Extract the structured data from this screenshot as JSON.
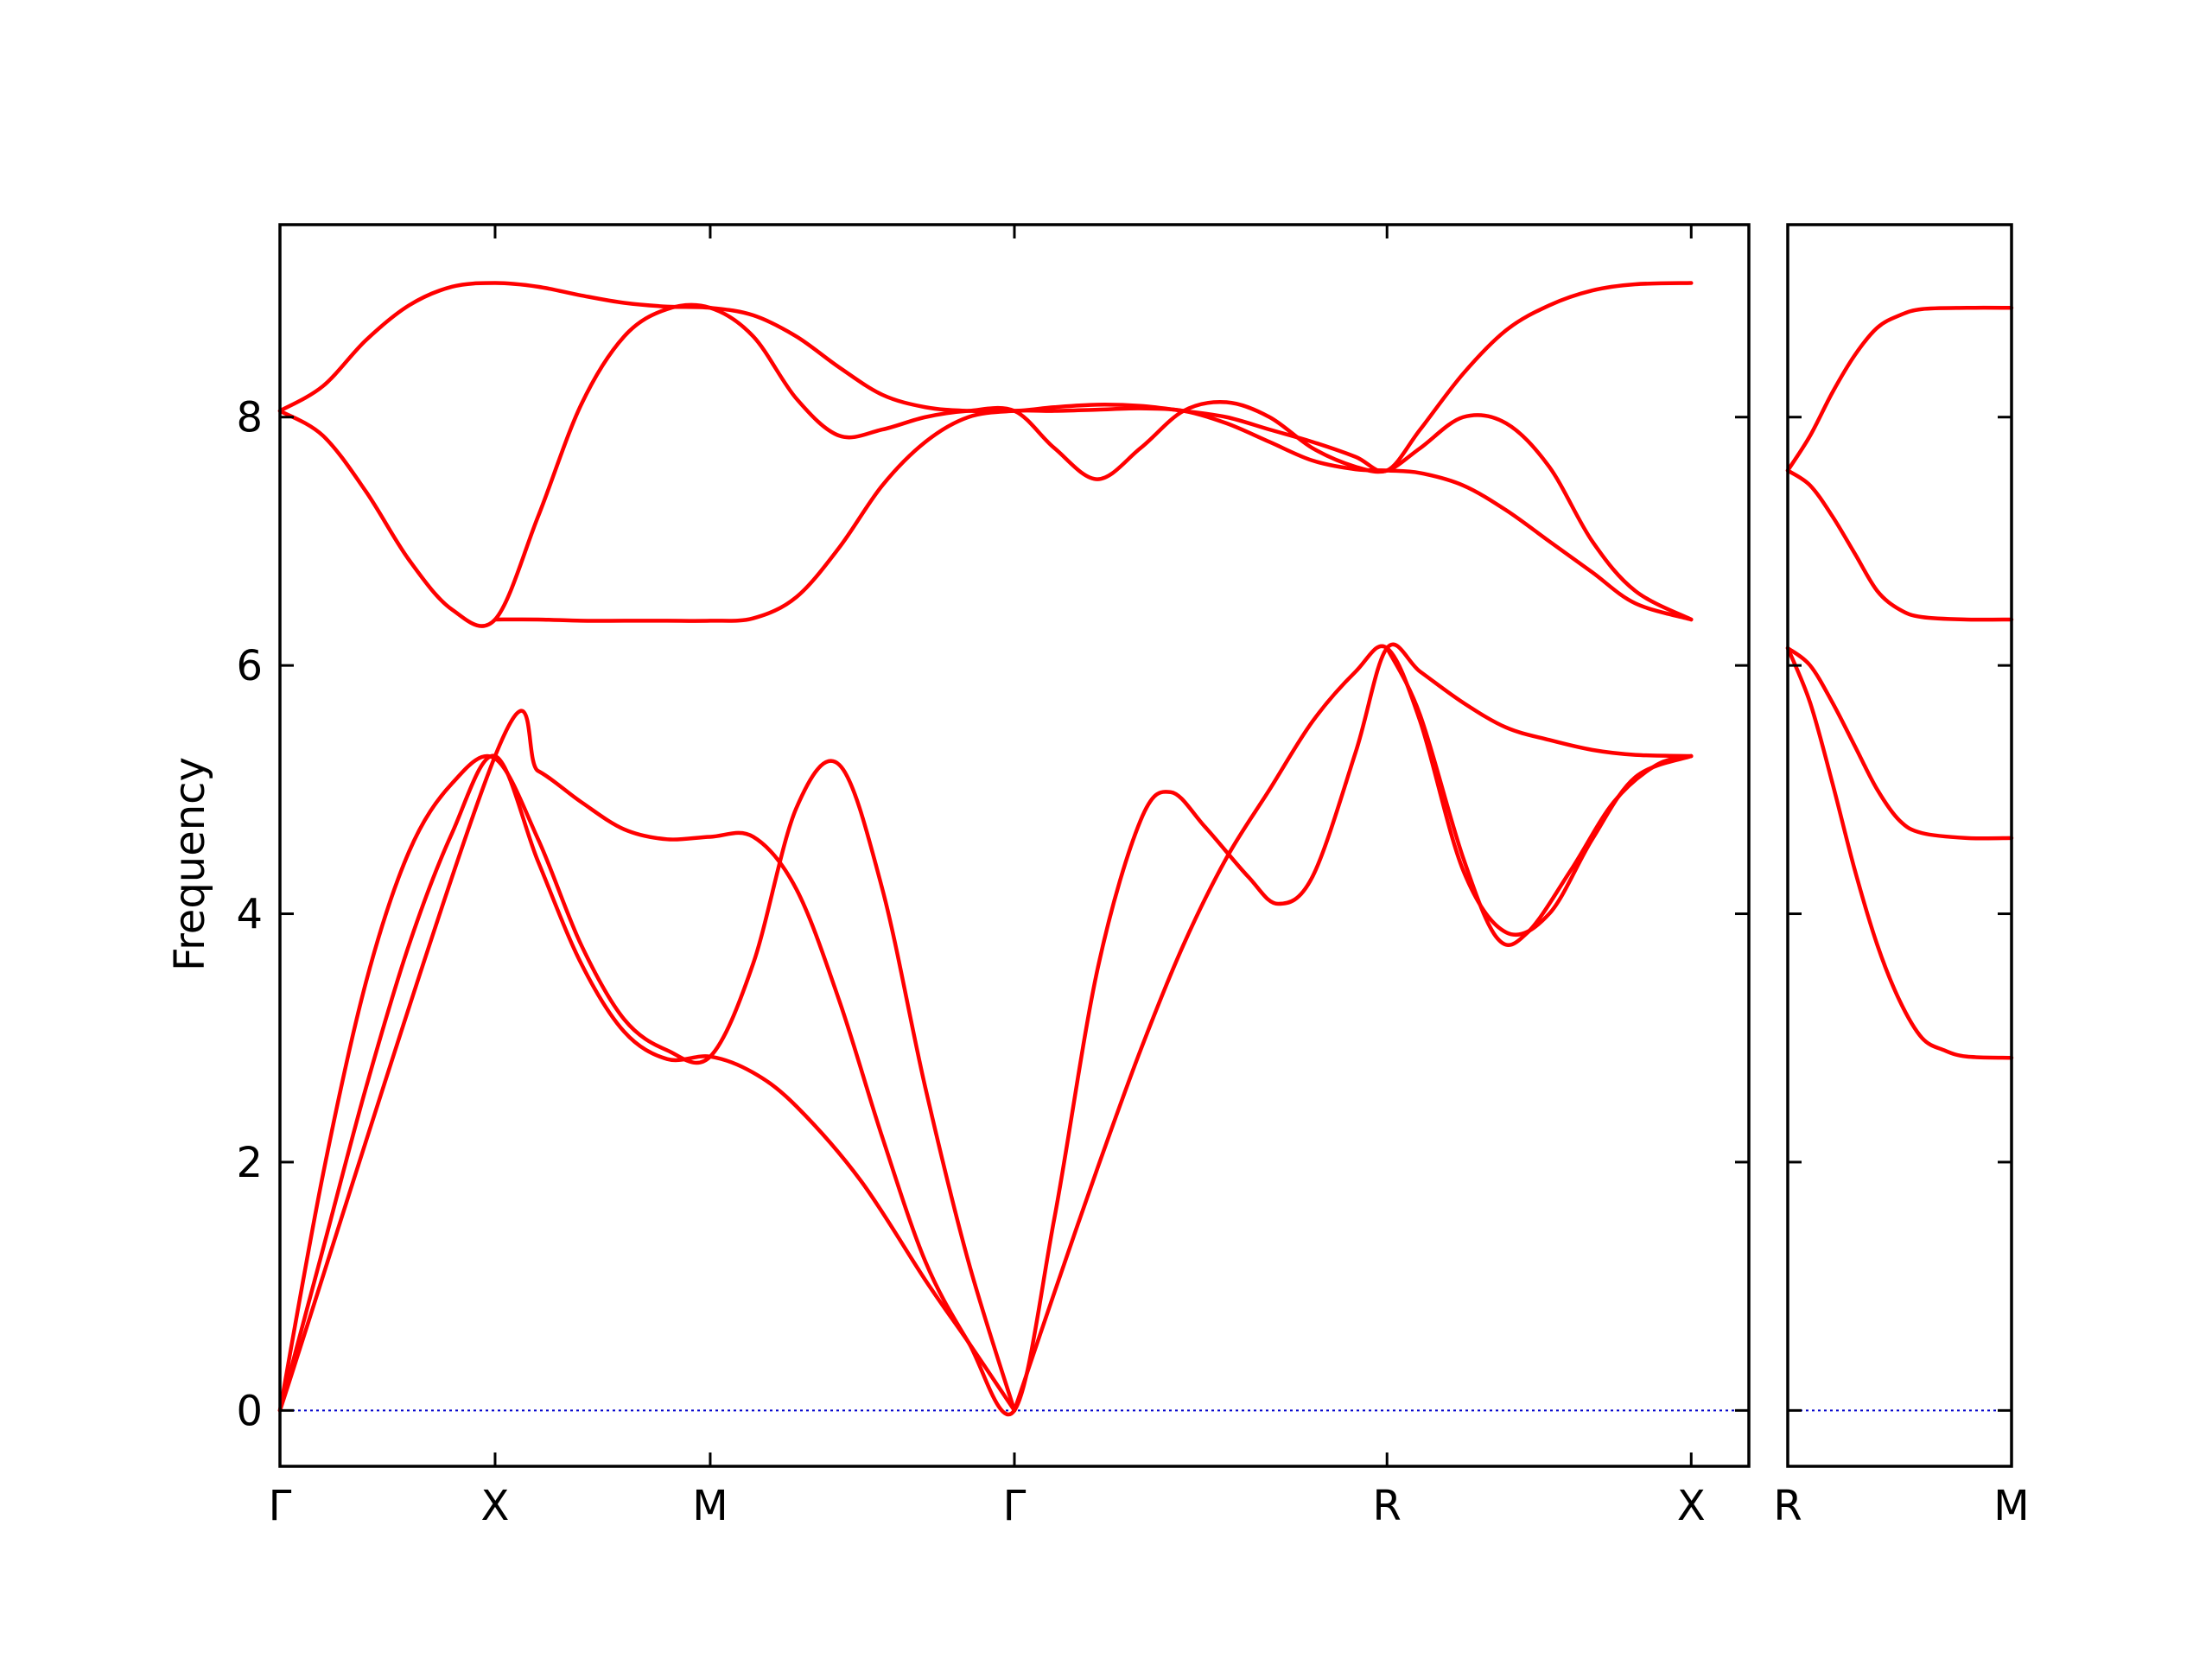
{
  "chart_data": {
    "type": "line",
    "ylabel": "Frequency",
    "ylim": [
      -0.45,
      9.55
    ],
    "y_ticks": [
      0,
      2,
      4,
      6,
      8
    ],
    "grid": false,
    "legend": "none",
    "colors": {
      "bands": "#ff0000",
      "zero_line": "#0000cc",
      "frame": "#000000"
    },
    "panels": [
      {
        "x_range": [
          0,
          3.414
        ],
        "x_ticks": [
          {
            "x": 0,
            "label": "Γ"
          },
          {
            "x": 0.5,
            "label": "X"
          },
          {
            "x": 1.0,
            "label": "M"
          },
          {
            "x": 1.707,
            "label": "Γ"
          },
          {
            "x": 2.573,
            "label": "R"
          },
          {
            "x": 3.28,
            "label": "X"
          }
        ],
        "series": [
          {
            "values": [
              [
                0,
                0
              ],
              [
                0.1,
                1.3
              ],
              [
                0.2,
                2.6
              ],
              [
                0.3,
                3.75
              ],
              [
                0.4,
                4.65
              ],
              [
                0.5,
                5.27
              ],
              [
                0.6,
                4.42
              ],
              [
                0.7,
                3.6
              ],
              [
                0.8,
                3.05
              ],
              [
                0.9,
                2.83
              ],
              [
                1.0,
                2.85
              ],
              [
                1.1,
                2.72
              ],
              [
                1.2,
                2.45
              ],
              [
                1.35,
                1.85
              ],
              [
                1.5,
                1.05
              ],
              [
                1.6,
                0.55
              ],
              [
                1.707,
                0
              ]
            ]
          },
          {
            "values": [
              [
                0,
                0
              ],
              [
                0.1,
                1.9
              ],
              [
                0.2,
                3.45
              ],
              [
                0.3,
                4.5
              ],
              [
                0.4,
                5.05
              ],
              [
                0.5,
                5.25
              ],
              [
                0.6,
                4.6
              ],
              [
                0.7,
                3.75
              ],
              [
                0.8,
                3.15
              ],
              [
                0.9,
                2.9
              ],
              [
                1.0,
                2.85
              ],
              [
                1.1,
                3.6
              ],
              [
                1.2,
                4.85
              ],
              [
                1.3,
                5.2
              ],
              [
                1.4,
                4.2
              ],
              [
                1.5,
                2.6
              ],
              [
                1.6,
                1.2
              ],
              [
                1.707,
                0
              ]
            ]
          },
          {
            "values": [
              [
                0,
                0
              ],
              [
                0.5,
                5.27
              ],
              [
                0.6,
                5.15
              ],
              [
                0.7,
                4.9
              ],
              [
                0.8,
                4.68
              ],
              [
                0.9,
                4.6
              ],
              [
                1.0,
                4.62
              ],
              [
                1.1,
                4.62
              ],
              [
                1.2,
                4.2
              ],
              [
                1.3,
                3.3
              ],
              [
                1.4,
                2.2
              ],
              [
                1.5,
                1.2
              ],
              [
                1.6,
                0.55
              ],
              [
                1.707,
                0
              ],
              [
                1.8,
                1.55
              ],
              [
                1.9,
                3.55
              ],
              [
                2.0,
                4.75
              ],
              [
                2.07,
                4.98
              ],
              [
                2.15,
                4.7
              ],
              [
                2.25,
                4.3
              ],
              [
                2.32,
                4.08
              ],
              [
                2.4,
                4.3
              ],
              [
                2.5,
                5.3
              ],
              [
                2.573,
                6.14
              ],
              [
                2.65,
                5.95
              ],
              [
                2.75,
                5.7
              ],
              [
                2.85,
                5.5
              ],
              [
                2.95,
                5.4
              ],
              [
                3.05,
                5.32
              ],
              [
                3.15,
                5.28
              ],
              [
                3.28,
                5.27
              ]
            ]
          },
          {
            "values": [
              [
                1.707,
                0
              ],
              [
                1.8,
                0.95
              ],
              [
                1.9,
                1.95
              ],
              [
                2.0,
                2.9
              ],
              [
                2.1,
                3.75
              ],
              [
                2.2,
                4.45
              ],
              [
                2.3,
                5.0
              ],
              [
                2.4,
                5.55
              ],
              [
                2.5,
                5.95
              ],
              [
                2.573,
                6.14
              ],
              [
                2.65,
                5.55
              ],
              [
                2.75,
                4.35
              ],
              [
                2.85,
                3.85
              ],
              [
                2.95,
                4.0
              ],
              [
                3.05,
                4.6
              ],
              [
                3.15,
                5.1
              ],
              [
                3.28,
                5.27
              ]
            ]
          },
          {
            "values": [
              [
                2.573,
                6.14
              ],
              [
                2.65,
                5.6
              ],
              [
                2.75,
                4.45
              ],
              [
                2.83,
                3.8
              ],
              [
                2.9,
                3.85
              ],
              [
                3.0,
                4.35
              ],
              [
                3.1,
                4.9
              ],
              [
                3.2,
                5.2
              ],
              [
                3.28,
                5.27
              ]
            ]
          },
          {
            "values": [
              [
                0,
                8.05
              ],
              [
                0.1,
                8.25
              ],
              [
                0.2,
                8.62
              ],
              [
                0.3,
                8.9
              ],
              [
                0.4,
                9.05
              ],
              [
                0.5,
                9.08
              ],
              [
                0.6,
                9.05
              ],
              [
                0.7,
                8.98
              ],
              [
                0.8,
                8.92
              ],
              [
                0.9,
                8.89
              ],
              [
                1.0,
                8.88
              ],
              [
                1.1,
                8.82
              ],
              [
                1.2,
                8.65
              ],
              [
                1.3,
                8.4
              ],
              [
                1.4,
                8.18
              ],
              [
                1.5,
                8.08
              ],
              [
                1.6,
                8.05
              ],
              [
                1.707,
                8.05
              ],
              [
                1.8,
                8.08
              ],
              [
                1.9,
                8.1
              ],
              [
                2.0,
                8.09
              ],
              [
                2.1,
                8.05
              ],
              [
                2.2,
                8.0
              ],
              [
                2.3,
                7.9
              ],
              [
                2.4,
                7.8
              ],
              [
                2.5,
                7.68
              ],
              [
                2.573,
                7.57
              ],
              [
                2.65,
                7.9
              ],
              [
                2.75,
                8.35
              ],
              [
                2.85,
                8.7
              ],
              [
                2.95,
                8.9
              ],
              [
                3.05,
                9.02
              ],
              [
                3.15,
                9.07
              ],
              [
                3.28,
                9.08
              ]
            ]
          },
          {
            "values": [
              [
                0,
                8.05
              ],
              [
                0.1,
                7.85
              ],
              [
                0.2,
                7.4
              ],
              [
                0.3,
                6.85
              ],
              [
                0.4,
                6.45
              ],
              [
                0.5,
                6.37
              ],
              [
                0.6,
                7.2
              ],
              [
                0.7,
                8.1
              ],
              [
                0.8,
                8.65
              ],
              [
                0.9,
                8.87
              ],
              [
                1.0,
                8.88
              ],
              [
                1.1,
                8.65
              ],
              [
                1.2,
                8.15
              ],
              [
                1.3,
                7.85
              ],
              [
                1.4,
                7.9
              ],
              [
                1.5,
                8.0
              ],
              [
                1.6,
                8.05
              ],
              [
                1.707,
                8.05
              ],
              [
                1.8,
                7.75
              ],
              [
                1.9,
                7.5
              ],
              [
                2.0,
                7.75
              ],
              [
                2.1,
                8.05
              ],
              [
                2.2,
                8.12
              ],
              [
                2.3,
                8.0
              ],
              [
                2.4,
                7.75
              ],
              [
                2.5,
                7.6
              ],
              [
                2.573,
                7.57
              ],
              [
                2.65,
                7.75
              ],
              [
                2.75,
                8.0
              ],
              [
                2.85,
                7.95
              ],
              [
                2.95,
                7.6
              ],
              [
                3.05,
                7.0
              ],
              [
                3.15,
                6.6
              ],
              [
                3.28,
                6.37
              ]
            ]
          },
          {
            "values": [
              [
                0.5,
                6.37
              ],
              [
                0.6,
                6.37
              ],
              [
                0.7,
                6.36
              ],
              [
                0.8,
                6.36
              ],
              [
                0.9,
                6.36
              ],
              [
                1.0,
                6.36
              ],
              [
                1.1,
                6.38
              ],
              [
                1.2,
                6.55
              ],
              [
                1.3,
                6.95
              ],
              [
                1.4,
                7.45
              ],
              [
                1.5,
                7.8
              ],
              [
                1.6,
                8.0
              ],
              [
                1.707,
                8.05
              ],
              [
                1.8,
                8.05
              ],
              [
                1.9,
                8.06
              ],
              [
                2.0,
                8.07
              ],
              [
                2.1,
                8.05
              ],
              [
                2.2,
                7.95
              ],
              [
                2.3,
                7.8
              ],
              [
                2.4,
                7.65
              ],
              [
                2.5,
                7.58
              ],
              [
                2.573,
                7.57
              ],
              [
                2.65,
                7.55
              ],
              [
                2.75,
                7.45
              ],
              [
                2.85,
                7.25
              ],
              [
                2.95,
                7.0
              ],
              [
                3.05,
                6.75
              ],
              [
                3.15,
                6.5
              ],
              [
                3.28,
                6.37
              ]
            ]
          }
        ]
      },
      {
        "x_range": [
          0,
          0.5
        ],
        "x_ticks": [
          {
            "x": 0,
            "label": "R"
          },
          {
            "x": 0.5,
            "label": "M"
          }
        ],
        "series": [
          {
            "values": [
              [
                0,
                6.14
              ],
              [
                0.05,
                5.7
              ],
              [
                0.1,
                5.05
              ],
              [
                0.15,
                4.35
              ],
              [
                0.2,
                3.75
              ],
              [
                0.25,
                3.3
              ],
              [
                0.3,
                3.0
              ],
              [
                0.35,
                2.9
              ],
              [
                0.4,
                2.85
              ],
              [
                0.5,
                2.84
              ]
            ]
          },
          {
            "values": [
              [
                0,
                6.14
              ],
              [
                0.05,
                6.0
              ],
              [
                0.1,
                5.7
              ],
              [
                0.15,
                5.35
              ],
              [
                0.2,
                5.0
              ],
              [
                0.25,
                4.75
              ],
              [
                0.3,
                4.65
              ],
              [
                0.4,
                4.61
              ],
              [
                0.5,
                4.61
              ]
            ]
          },
          {
            "values": [
              [
                0,
                7.57
              ],
              [
                0.05,
                7.45
              ],
              [
                0.1,
                7.2
              ],
              [
                0.15,
                6.9
              ],
              [
                0.2,
                6.6
              ],
              [
                0.25,
                6.45
              ],
              [
                0.3,
                6.39
              ],
              [
                0.4,
                6.37
              ],
              [
                0.5,
                6.37
              ]
            ]
          },
          {
            "values": [
              [
                0,
                7.57
              ],
              [
                0.05,
                7.85
              ],
              [
                0.1,
                8.2
              ],
              [
                0.15,
                8.5
              ],
              [
                0.2,
                8.72
              ],
              [
                0.25,
                8.82
              ],
              [
                0.3,
                8.87
              ],
              [
                0.4,
                8.88
              ],
              [
                0.5,
                8.88
              ]
            ]
          }
        ]
      }
    ]
  }
}
